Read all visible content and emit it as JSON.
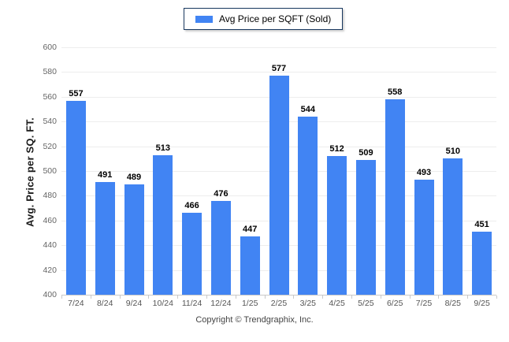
{
  "legend": {
    "label": "Avg Price per SQFT (Sold)"
  },
  "y_axis": {
    "title": "Avg. Price per SQ. FT."
  },
  "footer": {
    "copyright": "Copyright © Trendgraphix, Inc."
  },
  "colors": {
    "bar": "#4184f3",
    "legend_border": "#17375e",
    "gridline": "#ededed",
    "baseline": "#c9c9c9",
    "tick_label": "#666666",
    "value_label": "#000000"
  },
  "chart_data": {
    "type": "bar",
    "title": "Avg Price per SQFT (Sold)",
    "categories": [
      "7/24",
      "8/24",
      "9/24",
      "10/24",
      "11/24",
      "12/24",
      "1/25",
      "2/25",
      "3/25",
      "4/25",
      "5/25",
      "6/25",
      "7/25",
      "8/25",
      "9/25"
    ],
    "values": [
      557,
      491,
      489,
      513,
      466,
      476,
      447,
      577,
      544,
      512,
      509,
      558,
      493,
      510,
      451
    ],
    "xlabel": "",
    "ylabel": "Avg. Price per SQ. FT.",
    "ylim": [
      400,
      600
    ],
    "ytick_step": 20,
    "grid": true,
    "legend_position": "top-center",
    "value_labels_shown": true
  }
}
